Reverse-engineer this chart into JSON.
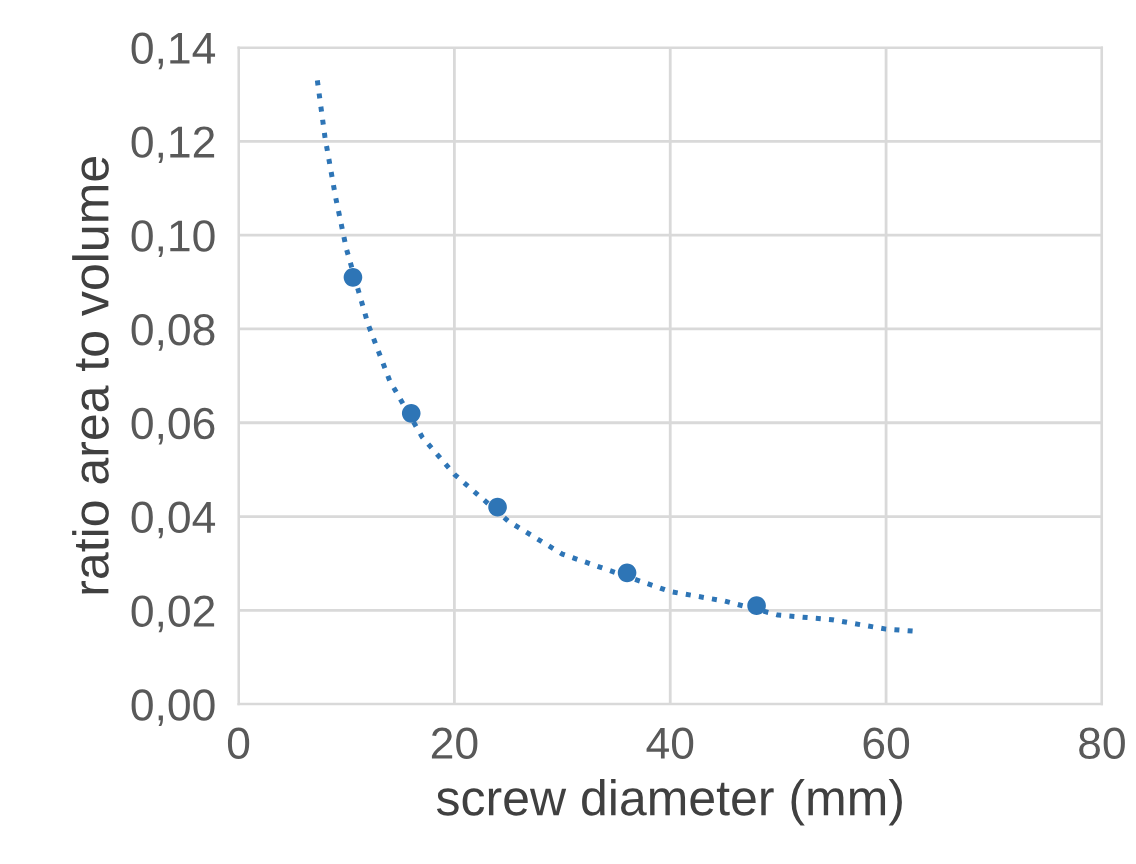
{
  "chart_data": {
    "type": "scatter",
    "xlabel": "screw diameter (mm)",
    "ylabel": "ratio area to volume",
    "series": [
      {
        "color": "#2e75b6",
        "marker": "circle",
        "x": [
          10.6,
          16,
          24,
          36,
          48
        ],
        "values": [
          0.091,
          0.062,
          0.042,
          0.028,
          0.021
        ]
      },
      {
        "type": "line",
        "color": "#2e75b6",
        "marker": "none",
        "line_style": "dotted",
        "x": [
          7.3,
          8,
          9,
          10,
          12,
          14,
          17,
          20,
          25,
          30,
          35,
          40,
          45,
          50,
          55,
          60,
          63
        ],
        "values": [
          0.133,
          0.121,
          0.108,
          0.097,
          0.081,
          0.069,
          0.057,
          0.049,
          0.039,
          0.032,
          0.028,
          0.024,
          0.022,
          0.019,
          0.018,
          0.016,
          0.0155
        ]
      }
    ],
    "xlim": [
      0,
      80
    ],
    "xticks": [
      0,
      20,
      40,
      60,
      80
    ],
    "ylim": [
      0,
      0.14
    ],
    "yticks": [
      {
        "value": 0,
        "label": "0,00"
      },
      {
        "value": 0.02,
        "label": "0,02"
      },
      {
        "value": 0.04,
        "label": "0,04"
      },
      {
        "value": 0.06,
        "label": "0,06"
      },
      {
        "value": 0.08,
        "label": "0,08"
      },
      {
        "value": 0.1,
        "label": "0,10"
      },
      {
        "value": 0.12,
        "label": "0,12"
      },
      {
        "value": 0.14,
        "label": "0,14"
      }
    ],
    "grid": true
  }
}
